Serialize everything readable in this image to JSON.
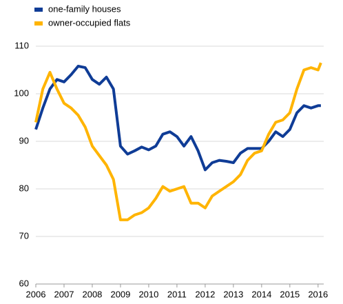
{
  "chart_data": {
    "type": "line",
    "x": [
      2006.0,
      2006.25,
      2006.5,
      2006.75,
      2007.0,
      2007.25,
      2007.5,
      2007.75,
      2008.0,
      2008.25,
      2008.5,
      2008.75,
      2009.0,
      2009.25,
      2009.5,
      2009.75,
      2010.0,
      2010.25,
      2010.5,
      2010.75,
      2011.0,
      2011.25,
      2011.5,
      2011.75,
      2012.0,
      2012.25,
      2012.5,
      2012.75,
      2013.0,
      2013.25,
      2013.5,
      2013.75,
      2014.0,
      2014.25,
      2014.5,
      2014.75,
      2015.0,
      2015.25,
      2015.5,
      2015.75,
      2016.0,
      2016.1
    ],
    "series": [
      {
        "name": "one-family houses",
        "color": "#0f3c96",
        "values": [
          92.5,
          97,
          101,
          103,
          102.5,
          104,
          105.8,
          105.5,
          103,
          102,
          103.5,
          101,
          89,
          87.3,
          88,
          88.8,
          88.2,
          89,
          91.5,
          92,
          91,
          89,
          91,
          88,
          84,
          85.5,
          86,
          85.8,
          85.5,
          87.5,
          88.5,
          88.5,
          88.5,
          90,
          92,
          91,
          92.5,
          96,
          97.5,
          97,
          97.5,
          97.5
        ]
      },
      {
        "name": "owner-occupied flats",
        "color": "#ffb400",
        "values": [
          94,
          101,
          104.5,
          101,
          98,
          97,
          95.5,
          93,
          89,
          87,
          85,
          82,
          73.5,
          73.5,
          74.5,
          75,
          76,
          78,
          80.5,
          79.5,
          80,
          80.5,
          77,
          77,
          76,
          78.5,
          79.5,
          80.5,
          81.5,
          83,
          86,
          87.5,
          88,
          91.5,
          94,
          94.5,
          96,
          101,
          105,
          105.5,
          105,
          106.5
        ]
      }
    ],
    "xlim": [
      2006,
      2016.2
    ],
    "xticks": [
      2006,
      2007,
      2008,
      2009,
      2010,
      2011,
      2012,
      2013,
      2014,
      2015,
      2016
    ],
    "ylim": [
      60,
      110
    ],
    "yticks": [
      60,
      70,
      80,
      90,
      100,
      110
    ],
    "grid": true
  }
}
